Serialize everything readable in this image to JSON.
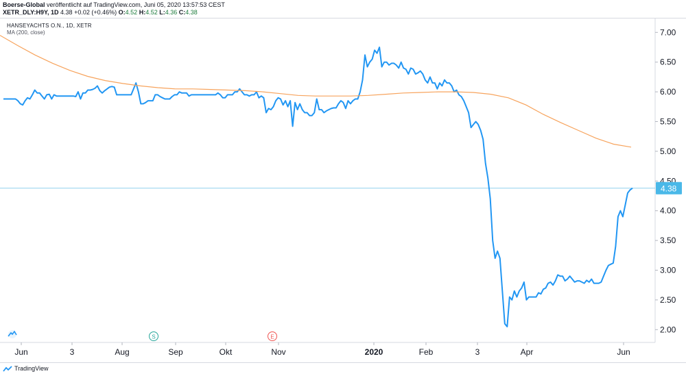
{
  "header": {
    "publisher": "Boerse-Global",
    "published_text": " veröffentlicht auf TradingView.com, Juni 05, 2020 13:57:53 CEST",
    "ticker": "XETR_DLY:H9Y, 1D",
    "last": "4.38",
    "change": "+0.02 (+0.46%)",
    "o_label": "O:",
    "o_value": "4.52",
    "h_label": "H:",
    "h_value": "4.52",
    "l_label": "L:",
    "l_value": "4.36",
    "c_label": "C:",
    "c_value": "4.38"
  },
  "symbol_title": "HANSEYACHTS O.N., 1D, XETR",
  "ma_label": "MA (200, close)",
  "footer": {
    "brand": "TradingView"
  },
  "event_markers": [
    {
      "letter": "S",
      "color": "#26a69a"
    },
    {
      "letter": "E",
      "color": "#ef5350"
    }
  ],
  "chart_data": {
    "type": "line",
    "y_ticks": [
      "7.00",
      "6.50",
      "6.00",
      "5.50",
      "5.00",
      "4.50",
      "4.00",
      "3.50",
      "3.00",
      "2.50",
      "2.00"
    ],
    "x_ticks": [
      "Jun",
      "3",
      "Aug",
      "Sep",
      "Okt",
      "Nov",
      "2020",
      "Feb",
      "3",
      "Apr",
      "Jun"
    ],
    "ylim": [
      1.8,
      7.2
    ],
    "last_value_label": "4.38",
    "colors": {
      "price": "#2196f3",
      "ma": "#f7a35c",
      "last_line": "#8fd0ee",
      "last_badge": "#4ab8e8"
    },
    "series": [
      {
        "values": [
          5.88,
          5.88,
          5.88,
          5.88,
          5.88,
          5.88,
          5.85,
          5.8,
          5.78,
          5.85,
          5.9,
          5.88,
          5.95,
          6.03,
          5.98,
          5.98,
          5.93,
          5.88,
          5.95,
          5.96,
          5.88,
          5.95,
          5.93,
          5.93,
          5.93,
          5.93,
          5.93,
          5.93,
          5.93,
          5.93,
          5.92,
          6.0,
          5.88,
          5.98,
          5.98,
          6.03,
          6.03,
          6.04,
          6.06,
          6.1,
          6.02,
          5.98,
          6.02,
          6.05,
          6.08,
          6.09,
          6.08,
          5.95,
          5.95,
          5.95,
          5.95,
          5.95,
          5.95,
          5.95,
          6.05,
          6.15,
          6.0,
          5.8,
          5.8,
          5.82,
          5.85,
          5.85,
          5.85,
          5.95,
          5.95,
          5.92,
          5.9,
          5.88,
          5.88,
          5.88,
          5.92,
          5.95,
          5.95,
          6.0,
          5.98,
          5.98,
          5.98,
          5.93,
          5.95,
          5.95,
          5.95,
          5.95,
          5.95,
          5.95,
          5.95,
          5.95,
          5.95,
          5.95,
          5.95,
          5.98,
          5.95,
          5.9,
          5.9,
          5.95,
          5.95,
          5.95,
          6.0,
          6.0,
          6.05,
          6.0,
          5.95,
          5.95,
          5.93,
          5.95,
          5.95,
          6.0,
          5.9,
          5.93,
          5.9,
          5.65,
          5.72,
          5.7,
          5.75,
          5.85,
          5.9,
          5.88,
          5.78,
          5.85,
          5.75,
          5.85,
          5.42,
          5.82,
          5.7,
          5.8,
          5.7,
          5.65,
          5.65,
          5.6,
          5.6,
          5.65,
          5.88,
          5.7,
          5.7,
          5.65,
          5.68,
          5.7,
          5.72,
          5.73,
          5.73,
          5.8,
          5.85,
          5.82,
          5.72,
          5.85,
          5.8,
          5.85,
          5.88,
          5.88,
          6.0,
          6.2,
          6.62,
          6.42,
          6.5,
          6.55,
          6.7,
          6.65,
          6.75,
          6.42,
          6.5,
          6.5,
          6.45,
          6.48,
          6.48,
          6.45,
          6.4,
          6.5,
          6.4,
          6.38,
          6.3,
          6.4,
          6.38,
          6.3,
          6.32,
          6.35,
          6.3,
          6.2,
          6.15,
          6.25,
          6.15,
          6.15,
          6.05,
          6.15,
          6.1,
          6.2,
          6.15,
          6.15,
          6.1,
          6.0,
          6.03,
          5.95,
          5.92,
          5.85,
          5.75,
          5.65,
          5.4,
          5.45,
          5.5,
          5.45,
          5.35,
          5.2,
          4.8,
          4.55,
          4.2,
          3.5,
          3.2,
          3.32,
          3.2,
          2.65,
          2.1,
          2.05,
          2.55,
          2.5,
          2.65,
          2.55,
          2.65,
          2.7,
          2.8,
          2.5,
          2.55,
          2.55,
          2.55,
          2.55,
          2.62,
          2.6,
          2.68,
          2.7,
          2.78,
          2.8,
          2.75,
          2.82,
          2.92,
          2.9,
          2.9,
          2.82,
          2.85,
          2.9,
          2.85,
          2.8,
          2.82,
          2.82,
          2.8,
          2.78,
          2.83,
          2.8,
          2.85,
          2.78,
          2.78,
          2.78,
          2.8,
          2.9,
          3.0,
          3.08,
          3.1,
          3.12,
          3.4,
          3.9,
          4.0,
          3.9,
          4.1,
          4.3,
          4.35,
          4.38
        ]
      },
      {
        "values": [
          6.95,
          6.78,
          6.62,
          6.48,
          6.36,
          6.26,
          6.19,
          6.14,
          6.1,
          6.07,
          6.05,
          6.05,
          6.04,
          6.03,
          6.02,
          6.0,
          5.97,
          5.94,
          5.93,
          5.93,
          5.93,
          5.94,
          5.96,
          5.98,
          5.99,
          6.0,
          6.0,
          5.99,
          5.96,
          5.9,
          5.78,
          5.62,
          5.48,
          5.35,
          5.22,
          5.12,
          5.07
        ]
      }
    ]
  }
}
